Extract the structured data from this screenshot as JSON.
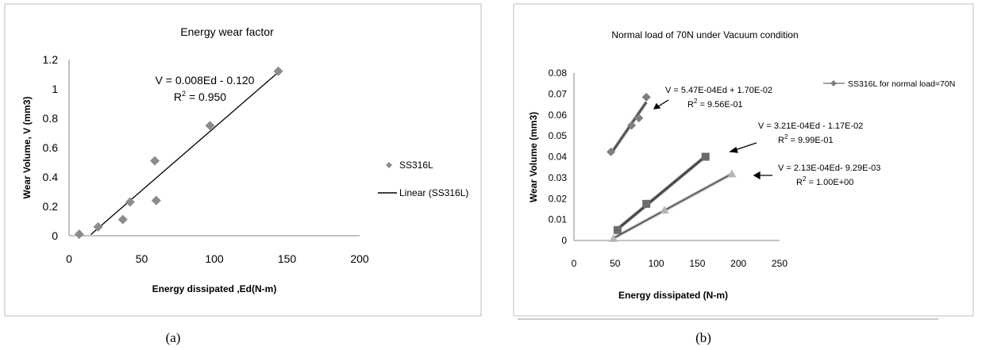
{
  "captions": [
    "(a)",
    "(b)"
  ],
  "chart_data": [
    {
      "type": "scatter",
      "title": "Energy wear factor",
      "xlabel": "Energy dissipated ,Ed(N-m)",
      "ylabel": "Wear Volume, V (mm3)",
      "xlim": [
        0,
        200
      ],
      "ylim": [
        0,
        1.2
      ],
      "xticks": [
        "0",
        "50",
        "100",
        "150",
        "200"
      ],
      "yticks": [
        "0",
        "0.2",
        "0.4",
        "0.6",
        "0.8",
        "1",
        "1.2"
      ],
      "grid": false,
      "legend_position": "right",
      "series": [
        {
          "name": "SS316L",
          "marker": "diamond",
          "color": "#8c8c8c",
          "points": [
            [
              7,
              0.01
            ],
            [
              20,
              0.06
            ],
            [
              37,
              0.11
            ],
            [
              42,
              0.23
            ],
            [
              59,
              0.51
            ],
            [
              60,
              0.24
            ],
            [
              97,
              0.75
            ],
            [
              144,
              1.12
            ]
          ]
        }
      ],
      "trendline": {
        "name": "Linear (SS316L)",
        "color": "#000000",
        "x": [
          15,
          143
        ]
      },
      "annotations": {
        "equation": "V = 0.008Ed - 0.120",
        "r2_label": "R",
        "r2_exp": "2",
        "r2_value": " = 0.950"
      }
    },
    {
      "type": "scatter",
      "title": "Normal load of 70N under Vacuum condition",
      "xlabel": "Energy dissipated (N-m)",
      "ylabel": "Wear Volume (mm3)",
      "xlim": [
        0,
        250
      ],
      "ylim": [
        0,
        0.08
      ],
      "xticks": [
        "0",
        "50",
        "100",
        "150",
        "200",
        "250"
      ],
      "yticks": [
        "0",
        "0.01",
        "0.02",
        "0.03",
        "0.04",
        "0.05",
        "0.06",
        "0.07",
        "0.08"
      ],
      "grid": false,
      "legend_position": "top-right",
      "series": [
        {
          "name": "SS316L for normal load=70N",
          "marker": "diamond",
          "color": "#808080",
          "points": [
            [
              45,
              0.0423
            ],
            [
              70,
              0.055
            ],
            [
              79,
              0.0585
            ],
            [
              88,
              0.0685
            ]
          ],
          "fit_x": [
            45,
            88
          ],
          "equation": "V = 5.47E-04Ed + 1.70E-02",
          "r2_value": " = 9.56E-01"
        },
        {
          "name": "",
          "marker": "square",
          "color": "#6b6b6b",
          "points": [
            [
              53,
              0.005
            ],
            [
              88,
              0.0175
            ],
            [
              160,
              0.04
            ]
          ],
          "fit_x": [
            50,
            160
          ],
          "equation": "V = 3.21E-04Ed - 1.17E-02",
          "r2_value": " = 9.99E-01"
        },
        {
          "name": "",
          "marker": "triangle",
          "color": "#b5b5b5",
          "points": [
            [
              48,
              0.001
            ],
            [
              110,
              0.0145
            ],
            [
              192,
              0.0318
            ]
          ],
          "fit_x": [
            48,
            192
          ],
          "equation": "V = 2.13E-04Ed- 9.29E-03",
          "r2_value": " = 1.00E+00"
        }
      ],
      "r2_label": "R",
      "r2_exp": "2"
    }
  ]
}
